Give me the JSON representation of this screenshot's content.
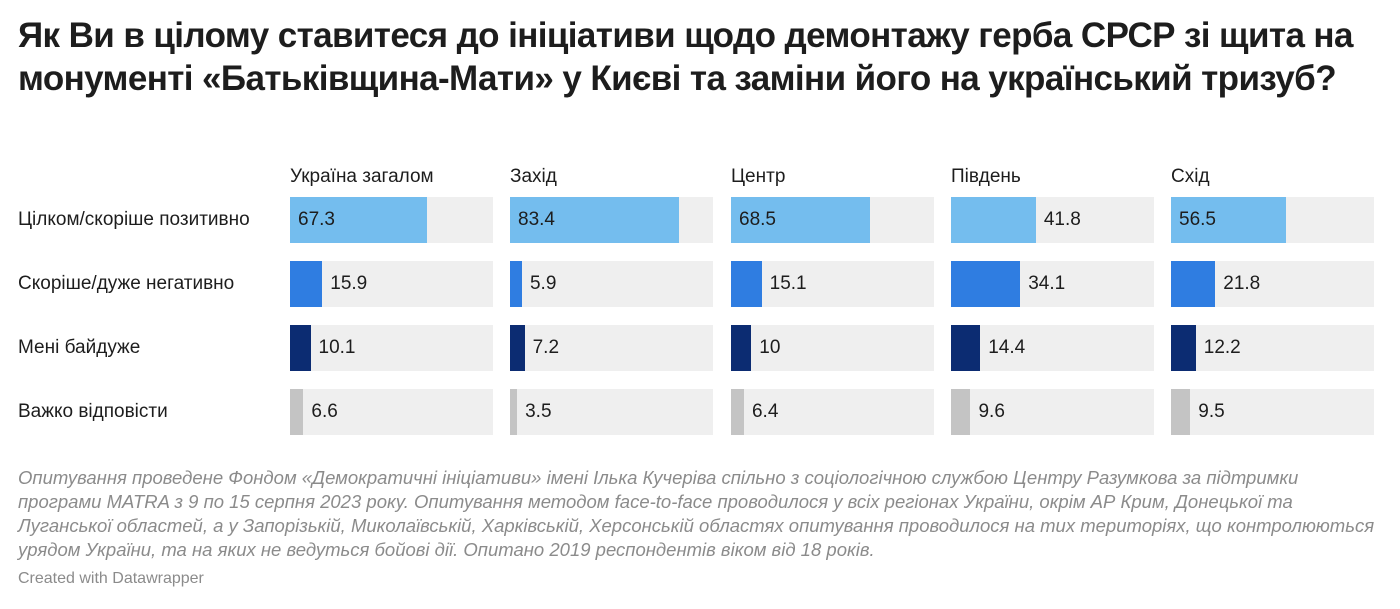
{
  "title": "Як Ви в цілому ставитеся до ініціативи щодо демонтажу герба СРСР зі щита на монументі «Батьківщина-Мати» у Києві та заміни його на український тризуб?",
  "note": "Опитування проведене Фондом «Демократичні ініціативи» імені Ілька Кучеріва спільно з соціологічною службою Центру Разумкова за підтримки програми MATRA  з 9  по 15 серпня 2023 року. Опитування методом face-to-face проводилося у всіх регіонах України, окрім АР Крим, Донецької та Луганської областей, а у Запорізькій, Миколаївській, Харківській, Херсонській областях опитування проводилося на тих територіях, що контролюються урядом України, та на яких не ведуться бойові дії. Опитано 2019 респондентів віком від 18 років.",
  "credit": "Created with Datawrapper",
  "chart_data": {
    "type": "bar",
    "orientation": "horizontal",
    "layout": "small-multiples",
    "xlim": [
      0,
      100
    ],
    "categories": [
      "Цілком/скоріше позитивно",
      "Скоріше/дуже негативно",
      "Мені байдуже",
      "Важко відповісти"
    ],
    "category_colors": [
      "#74bdee",
      "#2f7de1",
      "#0c2c72",
      "#c4c4c4"
    ],
    "track_color": "#efefef",
    "series": [
      {
        "name": "Україна загалом",
        "values": [
          67.3,
          15.9,
          10.1,
          6.6
        ]
      },
      {
        "name": "Захід",
        "values": [
          83.4,
          5.9,
          7.2,
          3.5
        ]
      },
      {
        "name": "Центр",
        "values": [
          68.5,
          15.1,
          10,
          6.4
        ]
      },
      {
        "name": "Південь",
        "values": [
          41.8,
          34.1,
          14.4,
          9.6
        ]
      },
      {
        "name": "Схід",
        "values": [
          56.5,
          21.8,
          12.2,
          9.5
        ]
      }
    ]
  }
}
